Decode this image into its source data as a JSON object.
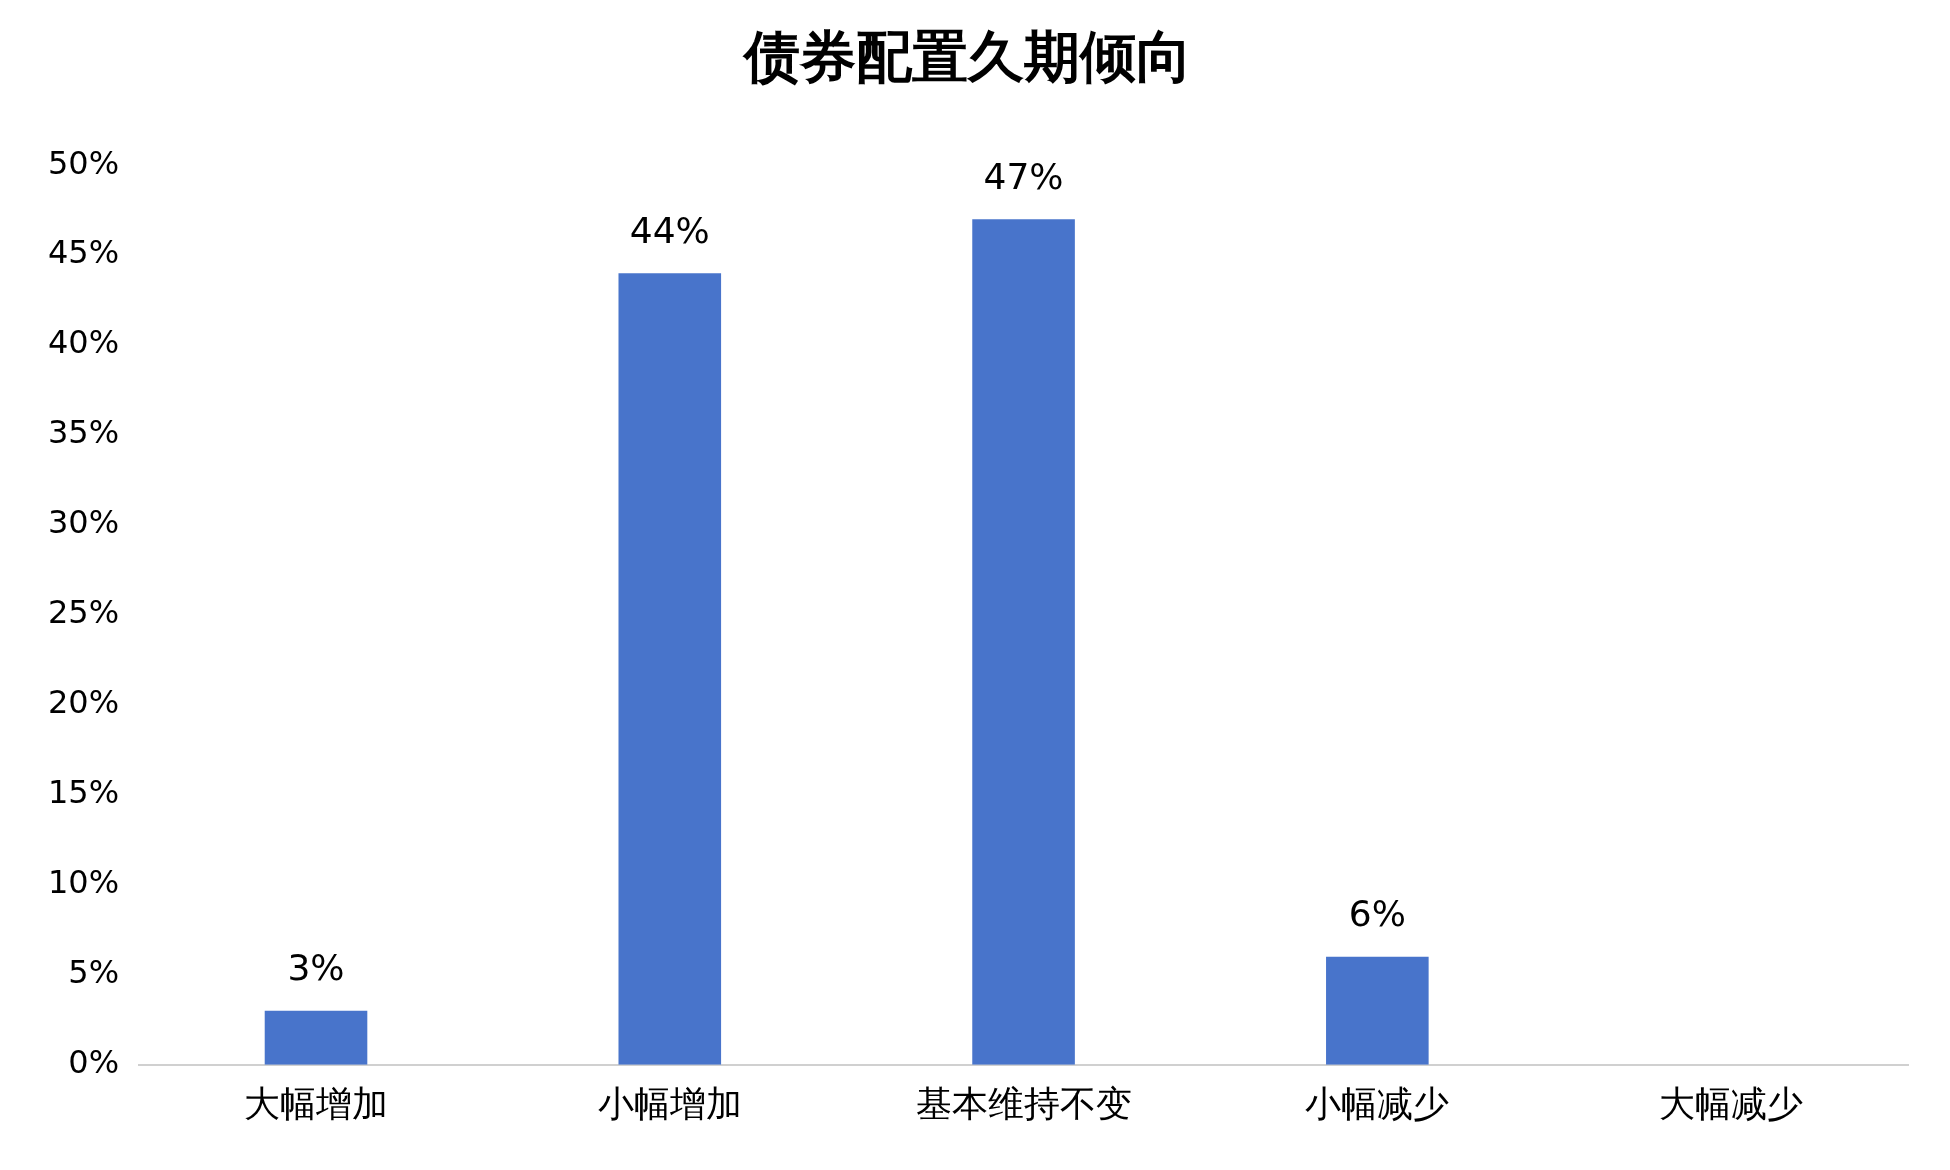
{
  "chart_data": {
    "type": "bar",
    "title": "债券配置久期倾向",
    "categories": [
      "大幅增加",
      "小幅增加",
      "基本维持不变",
      "小幅减少",
      "大幅减少"
    ],
    "values": [
      3,
      44,
      47,
      6,
      0
    ],
    "value_labels": [
      "3%",
      "44%",
      "47%",
      "6%",
      null
    ],
    "color": "#4874cb",
    "ylim": [
      0,
      50
    ],
    "yticks": [
      {
        "value": 0,
        "label": "0%"
      },
      {
        "value": 5,
        "label": "5%"
      },
      {
        "value": 10,
        "label": "10%"
      },
      {
        "value": 15,
        "label": "15%"
      },
      {
        "value": 20,
        "label": "20%"
      },
      {
        "value": 25,
        "label": "25%"
      },
      {
        "value": 30,
        "label": "30%"
      },
      {
        "value": 35,
        "label": "35%"
      },
      {
        "value": 40,
        "label": "40%"
      },
      {
        "value": 45,
        "label": "45%"
      },
      {
        "value": 50,
        "label": "50%"
      }
    ],
    "grid": false,
    "legend": false
  }
}
